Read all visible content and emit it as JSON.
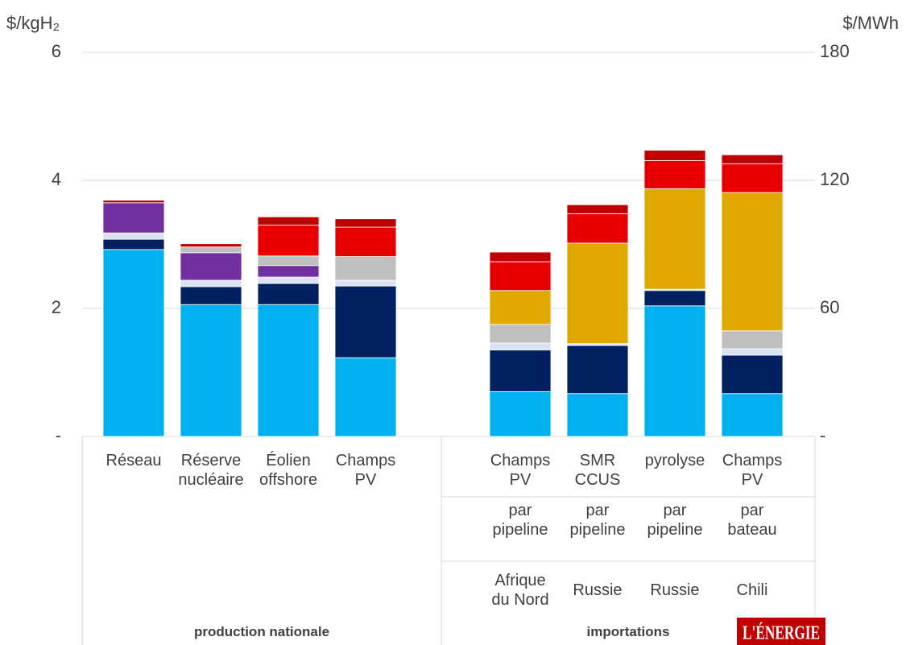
{
  "chart_data": {
    "type": "stacked_bar",
    "y_label": "$/kgH₂",
    "y2_label": "$/MWh",
    "categories": [
      "Réseau",
      "Réserve nucléaire",
      "Éolien offshore",
      "Champs PV",
      null,
      "Champs PV",
      "SMR CCUS",
      "pyrolyse",
      "Champs PV"
    ],
    "import_routes": [
      "par pipeline",
      "par pipeline",
      "par pipeline",
      "par bateau"
    ],
    "import_origins": [
      "Afrique du Nord",
      "Russie",
      "Russie",
      "Chili"
    ],
    "groups": [
      "production nationale",
      "importations"
    ],
    "series": [
      {
        "color": "#00b0f0",
        "values": [
          2.92,
          2.06,
          2.06,
          1.23,
          null,
          0.7,
          0.67,
          2.04,
          0.67
        ]
      },
      {
        "color": "#002060",
        "values": [
          0.16,
          0.28,
          0.33,
          1.12,
          null,
          0.65,
          0.75,
          0.24,
          0.6
        ]
      },
      {
        "color": "#dae3f3",
        "values": [
          0.1,
          0.1,
          0.1,
          0.09,
          null,
          0.11,
          0.03,
          0.02,
          0.1
        ]
      },
      {
        "color": "#7030a0",
        "values": [
          0.47,
          0.43,
          0.18,
          0,
          null,
          0,
          0,
          0,
          0
        ]
      },
      {
        "color": "#bfbfbf",
        "values": [
          0,
          0.09,
          0.15,
          0.37,
          null,
          0.29,
          0,
          0,
          0.28
        ]
      },
      {
        "color": "#e0a800",
        "values": [
          0,
          0,
          0,
          0,
          null,
          0.53,
          1.57,
          1.57,
          2.16
        ]
      },
      {
        "color": "#e80000",
        "values": [
          0,
          0,
          0.48,
          0.46,
          null,
          0.45,
          0.46,
          0.44,
          0.45
        ]
      },
      {
        "color": "#c00000",
        "values": [
          0.04,
          0.05,
          0.13,
          0.13,
          null,
          0.15,
          0.14,
          0.16,
          0.14
        ]
      }
    ],
    "ylim": [
      0,
      6
    ],
    "yticks": [
      {
        "value": 0,
        "label": "-"
      },
      2,
      4,
      6
    ],
    "y2lim": [
      0,
      180
    ],
    "y2ticks": [
      {
        "value": 0,
        "label": "-"
      },
      60,
      120,
      180
    ],
    "grid": true,
    "logo": "L'ÉNERGIE"
  }
}
